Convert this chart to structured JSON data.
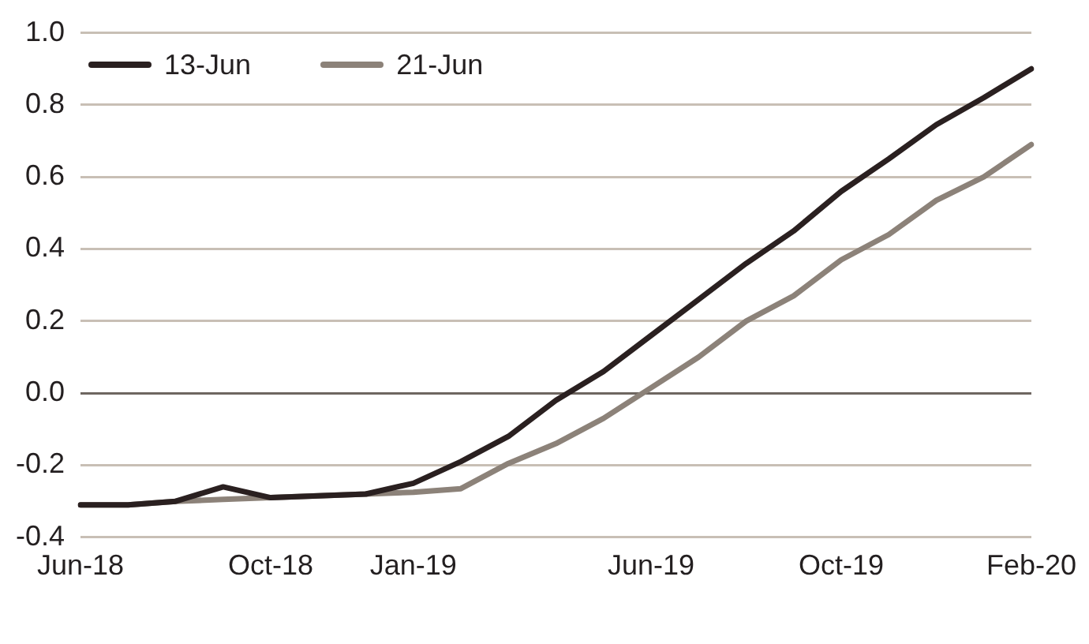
{
  "chart_data": {
    "type": "line",
    "categories": [
      "Jun-18",
      null,
      null,
      null,
      "Oct-18",
      null,
      null,
      "Jan-19",
      null,
      null,
      null,
      null,
      "Jun-19",
      null,
      null,
      null,
      "Oct-19",
      null,
      null,
      null,
      "Feb-20"
    ],
    "series": [
      {
        "name": "13-Jun",
        "color": "#2a2020",
        "values": [
          -0.31,
          -0.31,
          -0.3,
          -0.26,
          -0.29,
          -0.285,
          -0.28,
          -0.25,
          -0.19,
          -0.12,
          -0.02,
          0.06,
          0.16,
          0.26,
          0.36,
          0.45,
          0.56,
          0.65,
          0.745,
          0.82,
          0.9
        ]
      },
      {
        "name": "21-Jun",
        "color": "#8c8279",
        "values": [
          -0.31,
          -0.31,
          -0.3,
          -0.295,
          -0.29,
          -0.285,
          -0.28,
          -0.275,
          -0.265,
          -0.195,
          -0.14,
          -0.07,
          0.015,
          0.1,
          0.2,
          0.27,
          0.37,
          0.44,
          0.535,
          0.6,
          0.69
        ]
      }
    ],
    "ylim": [
      -0.4,
      1.0
    ],
    "yticks": [
      -0.4,
      -0.2,
      {
        "value": 0,
        "label": "0.0"
      },
      0.2,
      0.4,
      0.6,
      0.8,
      {
        "value": 1,
        "label": "1.0"
      }
    ],
    "grid": "y",
    "legend": "top left",
    "marker": "none",
    "line_style": "solid"
  }
}
